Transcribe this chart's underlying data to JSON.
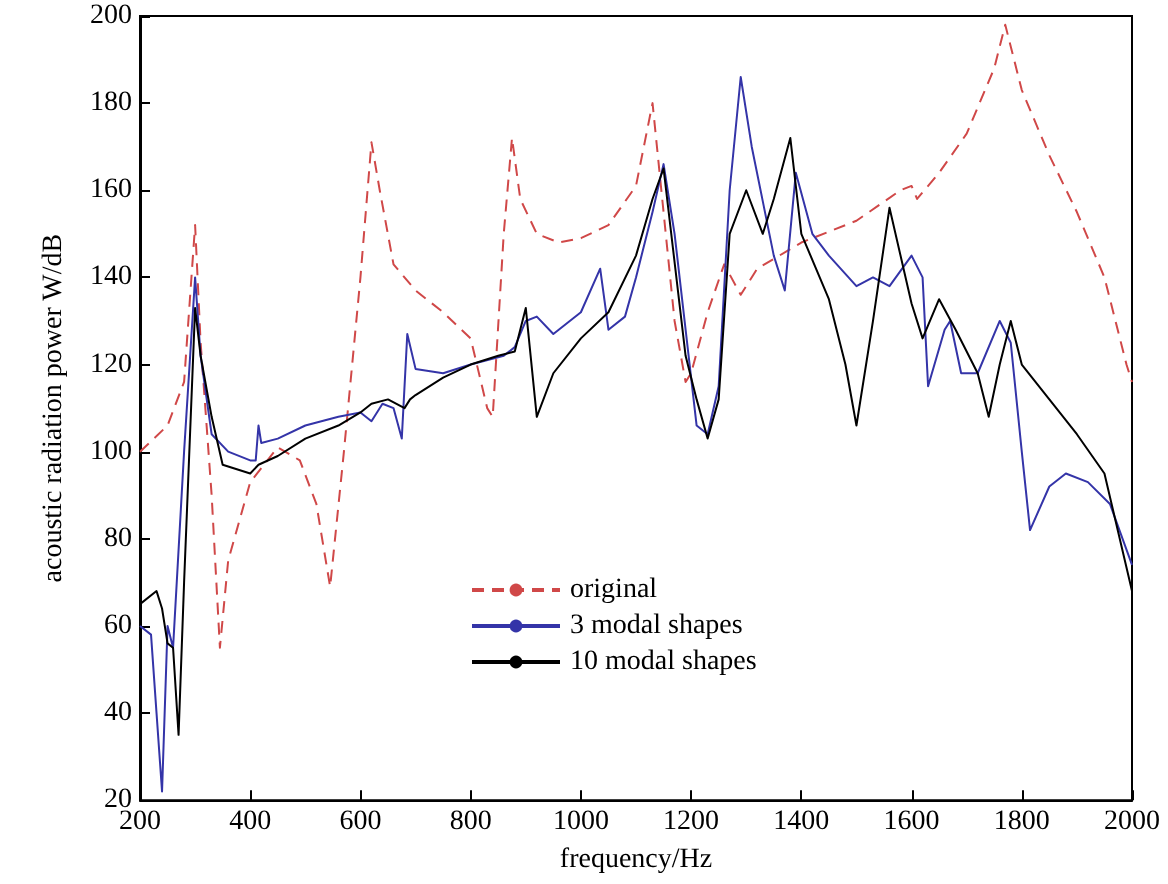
{
  "chart_data": {
    "type": "line",
    "xlabel": "frequency/Hz",
    "ylabel": "acoustic radiation power W/dB",
    "xlim": [
      200,
      2000
    ],
    "ylim": [
      20,
      200
    ],
    "xticks": [
      200,
      400,
      600,
      800,
      1000,
      1200,
      1400,
      1600,
      1800,
      2000
    ],
    "yticks": [
      20,
      40,
      60,
      80,
      100,
      120,
      140,
      160,
      180,
      200
    ],
    "grid": false,
    "legend": "bottom",
    "marker": "none",
    "series": [
      {
        "name": "original",
        "color": "#d04848",
        "line_style": "dashed",
        "x": [
          200,
          250,
          280,
          300,
          310,
          330,
          345,
          360,
          400,
          450,
          490,
          520,
          545,
          570,
          600,
          620,
          635,
          660,
          700,
          750,
          800,
          830,
          840,
          860,
          875,
          890,
          920,
          960,
          1000,
          1050,
          1100,
          1130,
          1150,
          1170,
          1190,
          1200,
          1230,
          1260,
          1290,
          1320,
          1400,
          1500,
          1580,
          1600,
          1610,
          1650,
          1700,
          1750,
          1770,
          1800,
          1850,
          1900,
          1950,
          1990,
          2000
        ],
        "values": [
          100,
          106,
          116,
          152,
          125,
          90,
          55,
          75,
          93,
          101,
          98,
          88,
          69,
          100,
          140,
          171,
          160,
          143,
          137,
          132,
          126,
          110,
          108,
          150,
          172,
          158,
          150,
          148,
          149,
          152,
          161,
          180,
          155,
          130,
          116,
          118,
          132,
          143,
          136,
          142,
          148,
          153,
          160,
          161,
          158,
          164,
          173,
          188,
          198,
          183,
          168,
          155,
          140,
          120,
          116
        ]
      },
      {
        "name": "3 modal shapes",
        "color": "#3434a8",
        "line_style": "solid",
        "x": [
          200,
          220,
          230,
          240,
          250,
          260,
          280,
          300,
          310,
          330,
          360,
          400,
          410,
          415,
          420,
          450,
          500,
          560,
          600,
          620,
          640,
          660,
          675,
          685,
          700,
          750,
          800,
          860,
          880,
          900,
          920,
          950,
          1000,
          1035,
          1050,
          1080,
          1100,
          1130,
          1150,
          1170,
          1190,
          1210,
          1230,
          1250,
          1270,
          1290,
          1310,
          1350,
          1370,
          1390,
          1420,
          1450,
          1500,
          1530,
          1560,
          1600,
          1620,
          1630,
          1660,
          1670,
          1690,
          1720,
          1760,
          1780,
          1800,
          1815,
          1850,
          1880,
          1920,
          1960,
          2000
        ],
        "values": [
          60,
          58,
          40,
          22,
          60,
          55,
          100,
          140,
          122,
          104,
          100,
          98,
          98,
          106,
          102,
          103,
          106,
          108,
          109,
          107,
          111,
          110,
          103,
          127,
          119,
          118,
          120,
          122,
          124,
          130,
          131,
          127,
          132,
          142,
          128,
          131,
          140,
          155,
          166,
          150,
          128,
          106,
          104,
          115,
          160,
          186,
          170,
          145,
          137,
          164,
          150,
          145,
          138,
          140,
          138,
          145,
          140,
          115,
          128,
          130,
          118,
          118,
          130,
          125,
          100,
          82,
          92,
          95,
          93,
          88,
          74
        ]
      },
      {
        "name": "10 modal shapes",
        "color": "#000000",
        "line_style": "solid",
        "x": [
          200,
          230,
          240,
          250,
          260,
          270,
          280,
          300,
          310,
          330,
          350,
          400,
          415,
          450,
          500,
          560,
          600,
          620,
          650,
          680,
          690,
          700,
          750,
          800,
          850,
          880,
          900,
          920,
          950,
          1000,
          1050,
          1100,
          1130,
          1150,
          1190,
          1210,
          1230,
          1250,
          1270,
          1300,
          1330,
          1350,
          1380,
          1400,
          1450,
          1480,
          1500,
          1530,
          1560,
          1600,
          1620,
          1650,
          1680,
          1720,
          1740,
          1760,
          1780,
          1800,
          1850,
          1900,
          1950,
          2000
        ],
        "values": [
          65,
          68,
          64,
          56,
          55,
          35,
          70,
          133,
          122,
          108,
          97,
          95,
          97,
          99,
          103,
          106,
          109,
          111,
          112,
          110,
          112,
          113,
          117,
          120,
          122,
          123,
          133,
          108,
          118,
          126,
          132,
          145,
          158,
          165,
          122,
          112,
          103,
          112,
          150,
          160,
          150,
          158,
          172,
          150,
          135,
          120,
          106,
          130,
          156,
          134,
          126,
          135,
          128,
          118,
          108,
          120,
          130,
          120,
          112,
          104,
          95,
          68
        ]
      }
    ]
  }
}
